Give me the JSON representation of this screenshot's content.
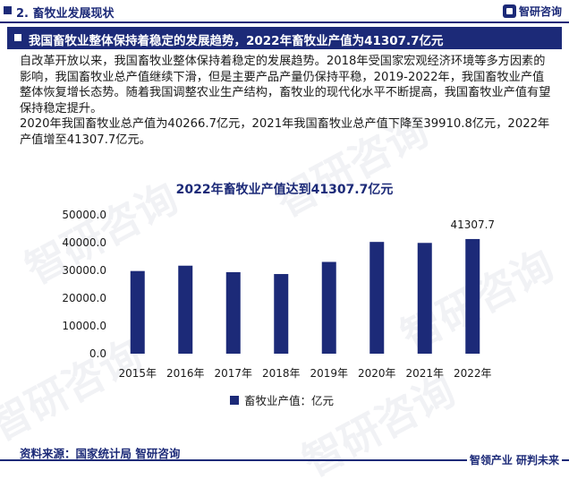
{
  "header": {
    "section_title": "2. 畜牧业发展现状",
    "logo_text": "智研咨询"
  },
  "banner": {
    "text": "我国畜牧业整体保持着稳定的发展趋势，2022年畜牧业产值为41307.7亿元"
  },
  "description": {
    "p1": "自改革开放以来，我国畜牧业整体保持着稳定的发展趋势。2018年受国家宏观经济环境等多方因素的影响，我国畜牧业总产值继续下滑，但是主要产品产量仍保持平稳，2019-2022年，我国畜牧业产值整体恢复增长态势。随着我国调整农业生产结构，畜牧业的现代化水平不断提高，我国畜牧业产值有望保持稳定提升。",
    "p2": "2020年我国畜牧业总产值为40266.7亿元，2021年我国畜牧业总产值下降至39910.8亿元，2022年产值增至41307.7亿元。"
  },
  "chart_data": {
    "type": "bar",
    "title": "2022年畜牧业产值达到41307.7亿元",
    "categories": [
      "2015年",
      "2016年",
      "2017年",
      "2018年",
      "2019年",
      "2020年",
      "2021年",
      "2022年"
    ],
    "series": [
      {
        "name": "畜牧业产值：亿元",
        "values": [
          29780,
          31703,
          29361,
          28697,
          33064,
          40266.7,
          39910.8,
          41307.7
        ]
      }
    ],
    "y_ticks": [
      "0.0",
      "10000.0",
      "20000.0",
      "30000.0",
      "40000.0",
      "50000.0"
    ],
    "ylim": [
      0,
      50000
    ],
    "data_labels": [
      {
        "index": 7,
        "text": "41307.7"
      }
    ],
    "bar_color": "#1c2a78",
    "legend_position": "bottom",
    "grid": false
  },
  "footer": {
    "source": "资料来源：国家统计局 智研咨询",
    "slogan": "智领产业  研判未来"
  },
  "colors": {
    "brand": "#1c2a78"
  }
}
